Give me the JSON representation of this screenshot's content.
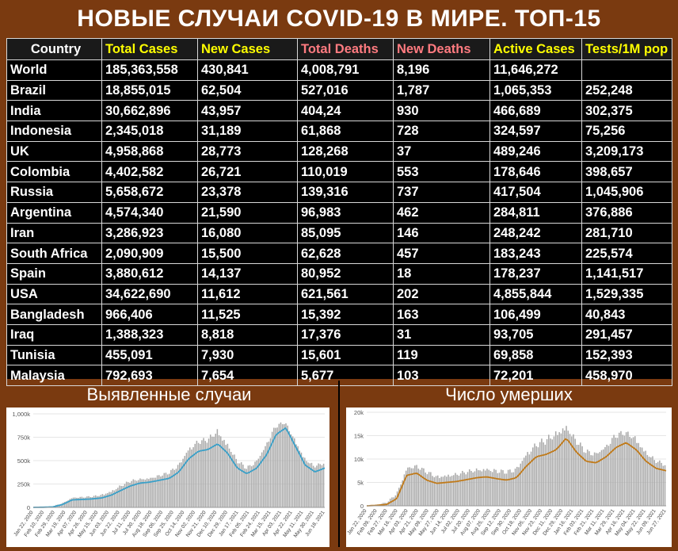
{
  "title": "НОВЫЕ СЛУЧАИ COVID-19 В МИРЕ. ТОП-15",
  "table": {
    "headers": [
      "Country",
      "Total Cases",
      "New Cases",
      "Total Deaths",
      "New Deaths",
      "Active Cases",
      "Tests/1M pop"
    ],
    "rows": [
      [
        "World",
        "185,363,558",
        "430,841",
        "4,008,791",
        "8,196",
        "11,646,272",
        ""
      ],
      [
        "Brazil",
        "18,855,015",
        "62,504",
        "527,016",
        "1,787",
        "1,065,353",
        "252,248"
      ],
      [
        "India",
        "30,662,896",
        "43,957",
        "404,24",
        "930",
        "466,689",
        "302,375"
      ],
      [
        "Indonesia",
        "2,345,018",
        "31,189",
        "61,868",
        "728",
        "324,597",
        "75,256"
      ],
      [
        "UK",
        "4,958,868",
        "28,773",
        "128,268",
        "37",
        "489,246",
        "3,209,173"
      ],
      [
        "Colombia",
        "4,402,582",
        "26,721",
        "110,019",
        "553",
        "178,646",
        "398,657"
      ],
      [
        "Russia",
        "5,658,672",
        "23,378",
        "139,316",
        "737",
        "417,504",
        "1,045,906"
      ],
      [
        "Argentina",
        "4,574,340",
        "21,590",
        "96,983",
        "462",
        "284,811",
        "376,886"
      ],
      [
        "Iran",
        "3,286,923",
        "16,080",
        "85,095",
        "146",
        "248,242",
        "281,710"
      ],
      [
        "South Africa",
        "2,090,909",
        "15,500",
        "62,628",
        "457",
        "183,243",
        "225,574"
      ],
      [
        "Spain",
        "3,880,612",
        "14,137",
        "80,952",
        "18",
        "178,237",
        "1,141,517"
      ],
      [
        "USA",
        "34,622,690",
        "11,612",
        "621,561",
        "202",
        "4,855,844",
        "1,529,335"
      ],
      [
        "Bangladesh",
        "966,406",
        "11,525",
        "15,392",
        "163",
        "106,499",
        "40,843"
      ],
      [
        "Iraq",
        "1,388,323",
        "8,818",
        "17,376",
        "31",
        "93,705",
        "291,457"
      ],
      [
        "Tunisia",
        "455,091",
        "7,930",
        "15,601",
        "119",
        "69,858",
        "152,393"
      ],
      [
        "Malaysia",
        "792,693",
        "7,654",
        "5,677",
        "103",
        "72,201",
        "458,970"
      ]
    ]
  },
  "colors": {
    "background": "#7a3a10",
    "bars": "#aaaaaa",
    "cases_line": "#3aa0c8",
    "deaths_line": "#c07a1a",
    "header_yellow": "#ffff00",
    "header_red": "#ff7b80"
  },
  "chart_data": [
    {
      "type": "bar",
      "title": "Выявленные случаи",
      "ylim": [
        0,
        1000000
      ],
      "ytick_labels": [
        "0",
        "250k",
        "500k",
        "750k",
        "1,000k"
      ],
      "ytick_values": [
        0,
        250000,
        500000,
        750000,
        1000000
      ],
      "xtick_labels": [
        "Jan 22, 2020",
        "Feb 10, 2020",
        "Feb 29, 2020",
        "Mar 19, 2020",
        "Apr 07, 2020",
        "Apr 26, 2020",
        "May 15, 2020",
        "Jun 03, 2020",
        "Jun 22, 2020",
        "Jul 11, 2020",
        "Jul 30, 2020",
        "Aug 18, 2020",
        "Sep 06, 2020",
        "Sep 25, 2020",
        "Oct 14, 2020",
        "Nov 02, 2020",
        "Nov 21, 2020",
        "Dec 10, 2020",
        "Dec 29, 2020",
        "Jan 17, 2021",
        "Feb 05, 2021",
        "Feb 24, 2021",
        "Mar 15, 2021",
        "Apr 03, 2021",
        "Apr 22, 2021",
        "May 11, 2021",
        "May 30, 2021",
        "Jun 18, 2021"
      ],
      "series_moving_average": [
        0,
        2000,
        5000,
        30000,
        80000,
        85000,
        90000,
        100000,
        130000,
        180000,
        230000,
        260000,
        270000,
        290000,
        310000,
        380000,
        520000,
        600000,
        620000,
        680000,
        580000,
        420000,
        360000,
        420000,
        560000,
        780000,
        850000,
        650000,
        450000,
        380000,
        420000
      ],
      "series_daily_peak": [
        0,
        5000,
        15000,
        50000,
        110000,
        115000,
        120000,
        140000,
        180000,
        240000,
        290000,
        310000,
        320000,
        350000,
        380000,
        470000,
        640000,
        720000,
        740000,
        840000,
        700000,
        520000,
        430000,
        500000,
        680000,
        880000,
        920000,
        740000,
        540000,
        450000,
        480000
      ]
    },
    {
      "type": "bar",
      "title": "Число умерших",
      "ylim": [
        0,
        20000
      ],
      "ytick_labels": [
        "0",
        "5k",
        "10k",
        "15k",
        "20k"
      ],
      "ytick_values": [
        0,
        5000,
        10000,
        15000,
        20000
      ],
      "xtick_labels": [
        "Jan 22, 2020",
        "Feb 09, 2020",
        "Feb 27, 2020",
        "Mar 16, 2020",
        "Apr 03, 2020",
        "Apr 21, 2020",
        "May 09, 2020",
        "May 27, 2020",
        "Jun 14, 2020",
        "Jul 02, 2020",
        "Jul 20, 2020",
        "Aug 07, 2020",
        "Aug 25, 2020",
        "Sep 12, 2020",
        "Sep 30, 2020",
        "Oct 18, 2020",
        "Nov 05, 2020",
        "Nov 23, 2020",
        "Dec 11, 2020",
        "Dec 29, 2020",
        "Jan 16, 2021",
        "Feb 03, 2021",
        "Feb 21, 2021",
        "Mar 11, 2021",
        "Mar 29, 2021",
        "Apr 16, 2021",
        "May 04, 2021",
        "May 22, 2021",
        "Jun 09, 2021",
        "Jun 27, 2021"
      ],
      "series_moving_average": [
        0,
        100,
        300,
        1500,
        6500,
        7000,
        5500,
        4800,
        5000,
        5200,
        5600,
        6000,
        6200,
        5800,
        5500,
        6000,
        8500,
        10500,
        11000,
        12000,
        14500,
        11500,
        9500,
        9200,
        10500,
        12500,
        13500,
        12000,
        9500,
        8000,
        7500
      ],
      "series_daily_peak": [
        0,
        300,
        800,
        3000,
        8500,
        8800,
        7500,
        6500,
        6800,
        7000,
        7500,
        8000,
        8200,
        7800,
        7500,
        8200,
        11500,
        13500,
        14500,
        16000,
        17500,
        14500,
        12000,
        11500,
        13000,
        15500,
        16000,
        15000,
        12000,
        10000,
        9000
      ]
    }
  ]
}
